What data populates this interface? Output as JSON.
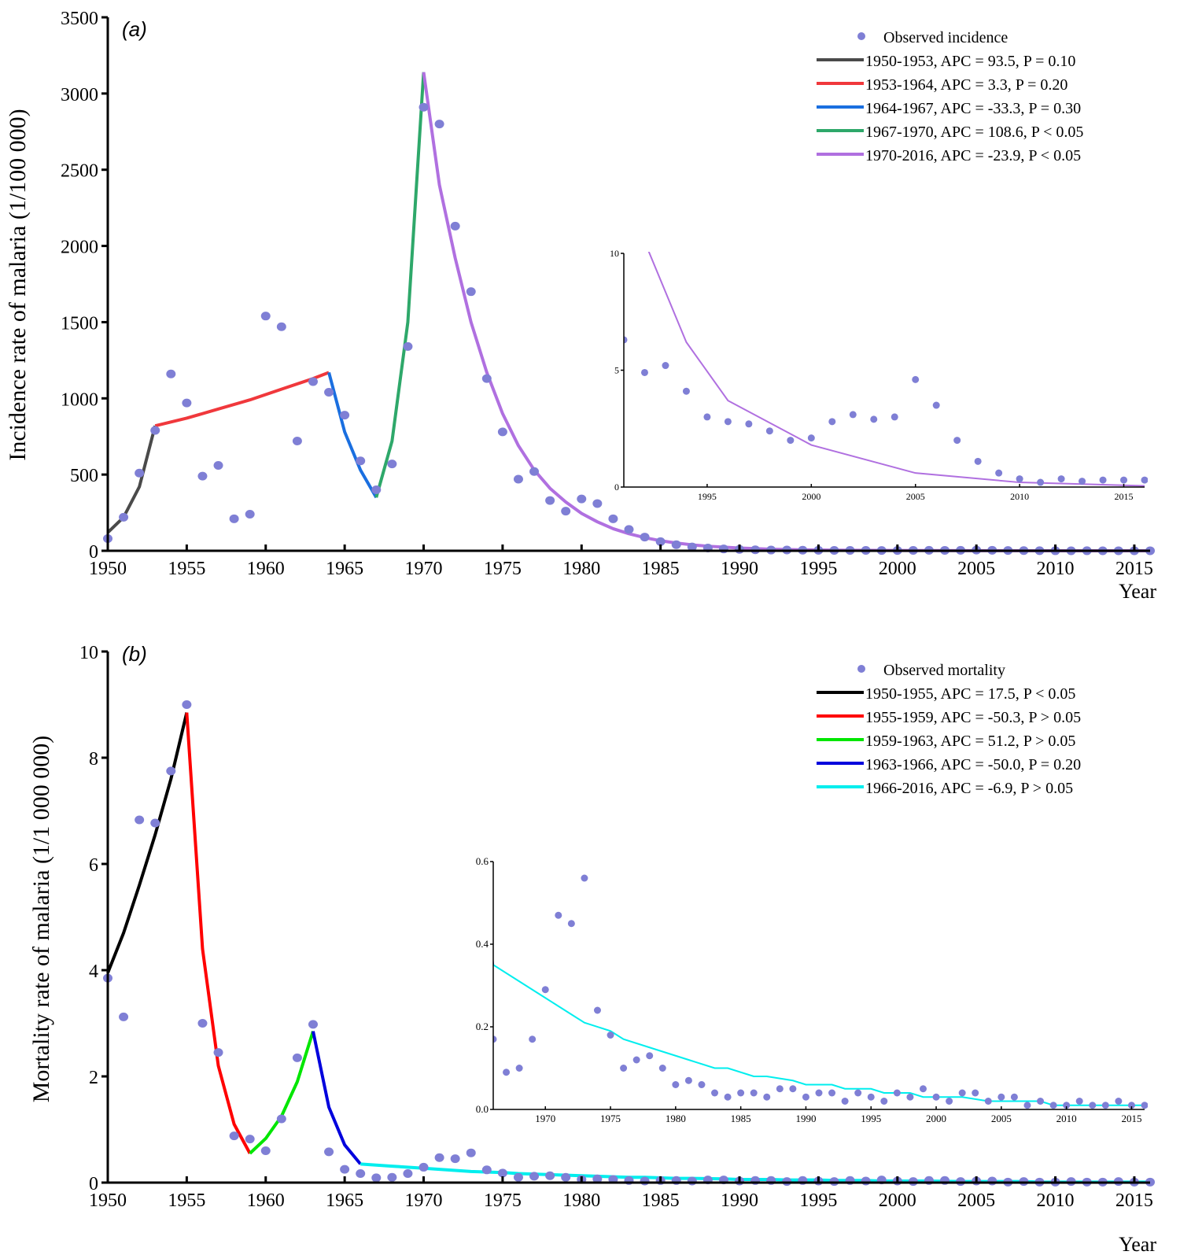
{
  "chart_data": [
    {
      "id": "a",
      "type": "scatter",
      "panel_label": "(a)",
      "title": "",
      "xlabel": "Year",
      "ylabel": "Incidence rate of malaria (1/100 000)",
      "xlim": [
        1950,
        2016
      ],
      "ylim": [
        0,
        3500
      ],
      "xticks": [
        1950,
        1955,
        1960,
        1965,
        1970,
        1975,
        1980,
        1985,
        1990,
        1995,
        2000,
        2005,
        2010,
        2015
      ],
      "yticks": [
        0,
        500,
        1000,
        1500,
        2000,
        2500,
        3000,
        3500
      ],
      "legend_position": "top-right",
      "observed": {
        "name": "Observed incidence",
        "color": "#7f7fd5",
        "x": [
          1950,
          1951,
          1952,
          1953,
          1954,
          1955,
          1956,
          1957,
          1958,
          1959,
          1960,
          1961,
          1962,
          1963,
          1964,
          1965,
          1966,
          1967,
          1968,
          1969,
          1970,
          1971,
          1972,
          1973,
          1974,
          1975,
          1976,
          1977,
          1978,
          1979,
          1980,
          1981,
          1982,
          1983,
          1984,
          1985,
          1986,
          1987,
          1988,
          1989,
          1990,
          1991,
          1992,
          1993,
          1994,
          1995,
          1996,
          1997,
          1998,
          1999,
          2000,
          2001,
          2002,
          2003,
          2004,
          2005,
          2006,
          2007,
          2008,
          2009,
          2010,
          2011,
          2012,
          2013,
          2014,
          2015,
          2016
        ],
        "y": [
          80,
          220,
          510,
          790,
          1160,
          970,
          490,
          560,
          210,
          240,
          1540,
          1470,
          720,
          1110,
          1040,
          890,
          590,
          400,
          570,
          1340,
          2910,
          2800,
          2130,
          1700,
          1130,
          780,
          470,
          520,
          330,
          260,
          340,
          310,
          210,
          140,
          90,
          60,
          40,
          25,
          18,
          12,
          8.8,
          6.3,
          4.9,
          5.2,
          4.1,
          3.0,
          2.8,
          2.7,
          2.4,
          2.0,
          2.1,
          2.8,
          3.1,
          2.9,
          3.0,
          4.6,
          3.5,
          2.0,
          1.1,
          0.6,
          0.35,
          0.2,
          0.35,
          0.25,
          0.3,
          0.3,
          0.3
        ]
      },
      "segments": [
        {
          "label": "1950-1953, APC =  93.5, P = 0.10",
          "color": "#4a4a4a",
          "x": [
            1950,
            1951,
            1952,
            1953
          ],
          "y": [
            120,
            220,
            420,
            820
          ]
        },
        {
          "label": "1953-1964, APC =    3.3, P = 0.20",
          "color": "#f0383c",
          "x": [
            1953,
            1955,
            1957,
            1959,
            1961,
            1963,
            1964
          ],
          "y": [
            820,
            870,
            930,
            990,
            1060,
            1130,
            1170
          ]
        },
        {
          "label": "1964-1967, APC = -33.3, P = 0.30",
          "color": "#1a6fe0",
          "x": [
            1964,
            1965,
            1966,
            1967
          ],
          "y": [
            1170,
            780,
            530,
            350
          ]
        },
        {
          "label": "1967-1970, APC = 108.6, P < 0.05",
          "color": "#2ea86a",
          "x": [
            1967,
            1968,
            1969,
            1970
          ],
          "y": [
            350,
            720,
            1500,
            3140
          ]
        },
        {
          "label": "1970-2016, APC =  -23.9, P < 0.05",
          "color": "#b070e0",
          "x": [
            1970,
            1971,
            1972,
            1973,
            1974,
            1975,
            1976,
            1977,
            1978,
            1979,
            1980,
            1981,
            1982,
            1983,
            1984,
            1985,
            1986,
            1987,
            1988,
            1990,
            1992,
            1994,
            1996,
            2000,
            2005,
            2010,
            2016
          ],
          "y": [
            3140,
            2400,
            1920,
            1500,
            1170,
            900,
            690,
            530,
            410,
            320,
            245,
            190,
            145,
            112,
            86,
            66,
            51,
            39,
            30,
            18,
            10.5,
            6.2,
            3.7,
            1.8,
            0.6,
            0.2,
            0.05
          ]
        }
      ],
      "inset": {
        "xlim": [
          1991,
          2016
        ],
        "ylim": [
          0,
          10
        ],
        "xticks": [
          1995,
          2000,
          2005,
          2010,
          2015
        ],
        "yticks": [
          0,
          5,
          10
        ]
      }
    },
    {
      "id": "b",
      "type": "scatter",
      "panel_label": "(b)",
      "title": "",
      "xlabel": "Year",
      "ylabel": "Mortality rate of malaria (1/1 000 000)",
      "xlim": [
        1950,
        2016
      ],
      "ylim": [
        0,
        10
      ],
      "xticks": [
        1950,
        1955,
        1960,
        1965,
        1970,
        1975,
        1980,
        1985,
        1990,
        1995,
        2000,
        2005,
        2010,
        2015
      ],
      "yticks": [
        0,
        2,
        4,
        6,
        8,
        10
      ],
      "legend_position": "top-right",
      "observed": {
        "name": "Observed mortality",
        "color": "#7f7fd5",
        "x": [
          1950,
          1951,
          1952,
          1953,
          1954,
          1955,
          1956,
          1957,
          1958,
          1959,
          1960,
          1961,
          1962,
          1963,
          1964,
          1965,
          1966,
          1967,
          1968,
          1969,
          1970,
          1971,
          1972,
          1973,
          1974,
          1975,
          1976,
          1977,
          1978,
          1979,
          1980,
          1981,
          1982,
          1983,
          1984,
          1985,
          1986,
          1987,
          1988,
          1989,
          1990,
          1991,
          1992,
          1993,
          1994,
          1995,
          1996,
          1997,
          1998,
          1999,
          2000,
          2001,
          2002,
          2003,
          2004,
          2005,
          2006,
          2007,
          2008,
          2009,
          2010,
          2011,
          2012,
          2013,
          2014,
          2015,
          2016
        ],
        "y": [
          3.85,
          3.12,
          6.83,
          6.77,
          7.75,
          9.0,
          3.0,
          2.45,
          0.88,
          0.82,
          0.6,
          1.2,
          2.35,
          2.98,
          0.58,
          0.25,
          0.17,
          0.09,
          0.1,
          0.17,
          0.29,
          0.47,
          0.45,
          0.56,
          0.24,
          0.18,
          0.1,
          0.12,
          0.13,
          0.1,
          0.06,
          0.07,
          0.06,
          0.04,
          0.03,
          0.04,
          0.04,
          0.03,
          0.05,
          0.05,
          0.03,
          0.04,
          0.04,
          0.02,
          0.04,
          0.03,
          0.02,
          0.04,
          0.03,
          0.05,
          0.03,
          0.02,
          0.04,
          0.04,
          0.02,
          0.03,
          0.03,
          0.01,
          0.02,
          0.01,
          0.01,
          0.02,
          0.01,
          0.01,
          0.02,
          0.01,
          0.01
        ]
      },
      "segments": [
        {
          "label": "1950-1955, APC =  17.5, P < 0.05",
          "color": "#000000",
          "x": [
            1950,
            1951,
            1952,
            1953,
            1954,
            1955
          ],
          "y": [
            3.95,
            4.7,
            5.6,
            6.55,
            7.6,
            8.85
          ]
        },
        {
          "label": "1955-1959, APC = -50.3, P > 0.05",
          "color": "#ff0000",
          "x": [
            1955,
            1956,
            1957,
            1958,
            1959
          ],
          "y": [
            8.85,
            4.4,
            2.2,
            1.1,
            0.55
          ]
        },
        {
          "label": "1959-1963, APC =  51.2, P > 0.05",
          "color": "#00e600",
          "x": [
            1959,
            1960,
            1961,
            1962,
            1963
          ],
          "y": [
            0.55,
            0.83,
            1.25,
            1.9,
            2.85
          ]
        },
        {
          "label": "1963-1966, APC = -50.0, P = 0.20",
          "color": "#0000dd",
          "x": [
            1963,
            1964,
            1965,
            1966
          ],
          "y": [
            2.85,
            1.42,
            0.71,
            0.35
          ]
        },
        {
          "label": "1966-2016, APC =   -6.9, P > 0.05",
          "color": "#00eeee",
          "x": [
            1966,
            1968,
            1970,
            1972,
            1973,
            1975,
            1976,
            1978,
            1980,
            1981,
            1983,
            1984,
            1986,
            1987,
            1989,
            1990,
            1992,
            1993,
            1995,
            1996,
            1998,
            1999,
            2001,
            2002,
            2004,
            2005,
            2008,
            2009,
            2016
          ],
          "y": [
            0.35,
            0.31,
            0.27,
            0.23,
            0.21,
            0.19,
            0.17,
            0.15,
            0.13,
            0.12,
            0.1,
            0.1,
            0.08,
            0.08,
            0.07,
            0.06,
            0.06,
            0.05,
            0.05,
            0.04,
            0.04,
            0.03,
            0.03,
            0.03,
            0.02,
            0.02,
            0.02,
            0.01,
            0.01
          ]
        }
      ],
      "inset": {
        "xlim": [
          1966,
          2016
        ],
        "ylim": [
          0,
          0.6
        ],
        "xticks": [
          1970,
          1975,
          1980,
          1985,
          1990,
          1995,
          2000,
          2005,
          2010,
          2015
        ],
        "yticks": [
          "0.0",
          "0.2",
          "0.4",
          "0.6"
        ]
      }
    }
  ]
}
